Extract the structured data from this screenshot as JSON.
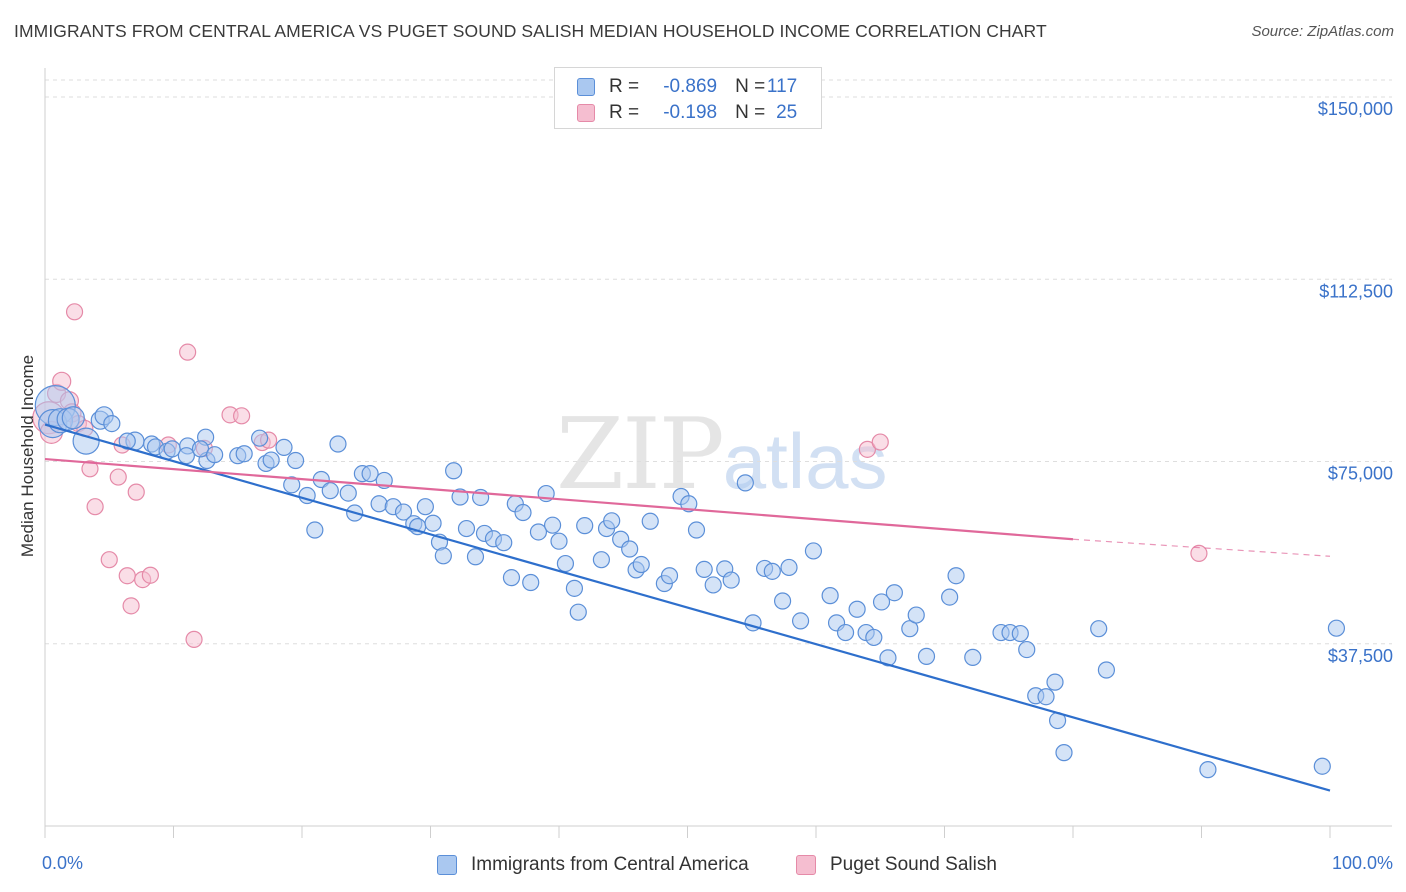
{
  "header": {
    "title": "IMMIGRANTS FROM CENTRAL AMERICA VS PUGET SOUND SALISH MEDIAN HOUSEHOLD INCOME CORRELATION CHART",
    "source": "Source: ZipAtlas.com"
  },
  "watermark": {
    "zip": "ZIP",
    "atlas": "atlas"
  },
  "legend_top": {
    "rows": [
      {
        "r_label": "R =",
        "r_value": "-0.869",
        "n_label": "N =",
        "n_value": "117"
      },
      {
        "r_label": "R =",
        "r_value": "-0.198",
        "n_label": "N =",
        "n_value": "25"
      }
    ]
  },
  "legend_bottom": {
    "series_a": "Immigrants from Central America",
    "series_b": "Puget Sound Salish"
  },
  "colors": {
    "blue_fill": "#aac8f0",
    "blue_stroke": "#5b8fd8",
    "blue_line": "#2e6fcc",
    "pink_fill": "#f5bed0",
    "pink_stroke": "#e58aa8",
    "pink_line": "#e0689a",
    "tick_text": "#3a72c9",
    "grid": "#dedede"
  },
  "chart_data": {
    "type": "scatter",
    "title": "IMMIGRANTS FROM CENTRAL AMERICA VS PUGET SOUND SALISH MEDIAN HOUSEHOLD INCOME CORRELATION CHART",
    "xlabel": "",
    "ylabel": "Median Household Income",
    "xlim": [
      0,
      100
    ],
    "ylim": [
      0,
      153500
    ],
    "x_tick_labels": [
      "0.0%",
      "100.0%"
    ],
    "y_ticks": [
      37500,
      75000,
      112500,
      150000
    ],
    "y_tick_labels": [
      "$37,500",
      "$75,000",
      "$112,500",
      "$150,000"
    ],
    "series": [
      {
        "name": "Immigrants from Central America",
        "r": -0.869,
        "n": 117,
        "trend": {
          "x": [
            0,
            100
          ],
          "y": [
            82600,
            7300
          ]
        },
        "points": [
          [
            0.8,
            86500,
            20
          ],
          [
            0.6,
            82800,
            14
          ],
          [
            1.2,
            83400,
            12
          ],
          [
            1.8,
            83700,
            11
          ],
          [
            2.2,
            84000,
            11
          ],
          [
            3.2,
            79200,
            13
          ],
          [
            4.3,
            83500,
            9
          ],
          [
            4.6,
            84400,
            9
          ],
          [
            5.2,
            82800,
            8
          ],
          [
            7.0,
            79200,
            9
          ],
          [
            6.4,
            79200,
            8
          ],
          [
            8.3,
            78600,
            8
          ],
          [
            8.6,
            78000,
            8
          ],
          [
            9.5,
            77100,
            8
          ],
          [
            9.9,
            77600,
            8
          ],
          [
            11.1,
            78200,
            8
          ],
          [
            11.0,
            76200,
            8
          ],
          [
            12.5,
            80000,
            8
          ],
          [
            12.6,
            75200,
            8
          ],
          [
            12.1,
            77600,
            8
          ],
          [
            13.2,
            76400,
            8
          ],
          [
            15.0,
            76200,
            8
          ],
          [
            15.5,
            76600,
            8
          ],
          [
            16.7,
            79800,
            8
          ],
          [
            17.2,
            74600,
            8
          ],
          [
            17.6,
            75300,
            8
          ],
          [
            18.6,
            77900,
            8
          ],
          [
            19.2,
            70200,
            8
          ],
          [
            19.5,
            75200,
            8
          ],
          [
            20.4,
            68000,
            8
          ],
          [
            21.0,
            60900,
            8
          ],
          [
            21.5,
            71300,
            8
          ],
          [
            22.2,
            69000,
            8
          ],
          [
            22.8,
            78600,
            8
          ],
          [
            23.6,
            68500,
            8
          ],
          [
            24.1,
            64400,
            8
          ],
          [
            24.7,
            72500,
            8
          ],
          [
            25.3,
            72500,
            8
          ],
          [
            26.0,
            66300,
            8
          ],
          [
            26.4,
            71100,
            8
          ],
          [
            27.1,
            65700,
            8
          ],
          [
            27.9,
            64600,
            8
          ],
          [
            28.7,
            62200,
            8
          ],
          [
            29.0,
            61600,
            8
          ],
          [
            29.6,
            65700,
            8
          ],
          [
            30.2,
            62300,
            8
          ],
          [
            30.7,
            58400,
            8
          ],
          [
            31.0,
            55600,
            8
          ],
          [
            31.8,
            73100,
            8
          ],
          [
            32.3,
            67700,
            8
          ],
          [
            32.8,
            61200,
            8
          ],
          [
            33.5,
            55400,
            8
          ],
          [
            33.9,
            67600,
            8
          ],
          [
            34.2,
            60200,
            8
          ],
          [
            34.9,
            59100,
            8
          ],
          [
            35.7,
            58300,
            8
          ],
          [
            36.3,
            51100,
            8
          ],
          [
            36.6,
            66300,
            8
          ],
          [
            37.2,
            64500,
            8
          ],
          [
            37.8,
            50100,
            8
          ],
          [
            38.4,
            60500,
            8
          ],
          [
            39.0,
            68400,
            8
          ],
          [
            39.5,
            61900,
            8
          ],
          [
            40.0,
            58600,
            8
          ],
          [
            40.5,
            54000,
            8
          ],
          [
            41.2,
            48900,
            8
          ],
          [
            41.5,
            44000,
            8
          ],
          [
            42.0,
            61800,
            8
          ],
          [
            43.3,
            54800,
            8
          ],
          [
            43.7,
            61200,
            8
          ],
          [
            44.1,
            62800,
            8
          ],
          [
            44.8,
            59000,
            8
          ],
          [
            45.5,
            57000,
            8
          ],
          [
            46.0,
            52700,
            8
          ],
          [
            46.4,
            53800,
            8
          ],
          [
            47.1,
            62700,
            8
          ],
          [
            48.2,
            49900,
            8
          ],
          [
            48.6,
            51500,
            8
          ],
          [
            49.5,
            67800,
            8
          ],
          [
            50.1,
            66300,
            8
          ],
          [
            50.7,
            60900,
            8
          ],
          [
            51.3,
            52800,
            8
          ],
          [
            52.0,
            49600,
            8
          ],
          [
            52.9,
            52900,
            8
          ],
          [
            53.4,
            50600,
            8
          ],
          [
            54.5,
            70600,
            8
          ],
          [
            55.1,
            41800,
            8
          ],
          [
            56.0,
            53000,
            8
          ],
          [
            56.6,
            52400,
            8
          ],
          [
            57.4,
            46300,
            8
          ],
          [
            57.9,
            53200,
            8
          ],
          [
            58.8,
            42200,
            8
          ],
          [
            59.8,
            56600,
            8
          ],
          [
            61.1,
            47400,
            8
          ],
          [
            61.6,
            41800,
            8
          ],
          [
            62.3,
            39800,
            8
          ],
          [
            63.2,
            44600,
            8
          ],
          [
            63.9,
            39800,
            8
          ],
          [
            64.5,
            38800,
            8
          ],
          [
            65.1,
            46100,
            8
          ],
          [
            65.6,
            34600,
            8
          ],
          [
            66.1,
            48000,
            8
          ],
          [
            67.3,
            40600,
            8
          ],
          [
            67.8,
            43400,
            8
          ],
          [
            68.6,
            34900,
            8
          ],
          [
            70.4,
            47100,
            8
          ],
          [
            70.9,
            51500,
            8
          ],
          [
            72.2,
            34700,
            8
          ],
          [
            74.4,
            39800,
            8
          ],
          [
            75.1,
            39800,
            8
          ],
          [
            75.9,
            39600,
            8
          ],
          [
            76.4,
            36300,
            8
          ],
          [
            77.1,
            26800,
            8
          ],
          [
            77.9,
            26600,
            8
          ],
          [
            78.8,
            21700,
            8
          ],
          [
            78.6,
            29600,
            8
          ],
          [
            79.3,
            15100,
            8
          ],
          [
            82.0,
            40600,
            8
          ],
          [
            82.6,
            32100,
            8
          ],
          [
            90.5,
            11600,
            8
          ],
          [
            99.4,
            12300,
            8
          ],
          [
            100.5,
            40700,
            8
          ]
        ]
      },
      {
        "name": "Puget Sound Salish",
        "r": -0.198,
        "n": 25,
        "trend": {
          "x": [
            0,
            80
          ],
          "y": [
            75500,
            59000
          ],
          "x_dashed_end": 100,
          "y_dashed_end": 55500
        },
        "points": [
          [
            0.3,
            84000,
            16
          ],
          [
            0.5,
            81000,
            11
          ],
          [
            0.9,
            89000,
            9
          ],
          [
            1.3,
            91500,
            9
          ],
          [
            1.9,
            87500,
            9
          ],
          [
            2.1,
            85000,
            9
          ],
          [
            2.3,
            105800,
            8
          ],
          [
            2.6,
            82800,
            8
          ],
          [
            3.1,
            81800,
            8
          ],
          [
            3.5,
            73500,
            8
          ],
          [
            3.9,
            65700,
            8
          ],
          [
            5.0,
            54800,
            8
          ],
          [
            5.7,
            71800,
            8
          ],
          [
            6.0,
            78400,
            8
          ],
          [
            6.4,
            51500,
            8
          ],
          [
            6.7,
            45300,
            8
          ],
          [
            7.1,
            68700,
            8
          ],
          [
            7.6,
            50700,
            8
          ],
          [
            8.2,
            51600,
            8
          ],
          [
            9.6,
            78400,
            8
          ],
          [
            11.1,
            97500,
            8
          ],
          [
            11.6,
            38400,
            8
          ],
          [
            12.4,
            77700,
            8
          ],
          [
            14.4,
            84600,
            8
          ],
          [
            15.3,
            84400,
            8
          ],
          [
            16.9,
            78900,
            8
          ],
          [
            17.4,
            79400,
            8
          ],
          [
            64.0,
            77500,
            8
          ],
          [
            65.0,
            79000,
            8
          ],
          [
            89.8,
            56100,
            8
          ]
        ]
      }
    ]
  }
}
